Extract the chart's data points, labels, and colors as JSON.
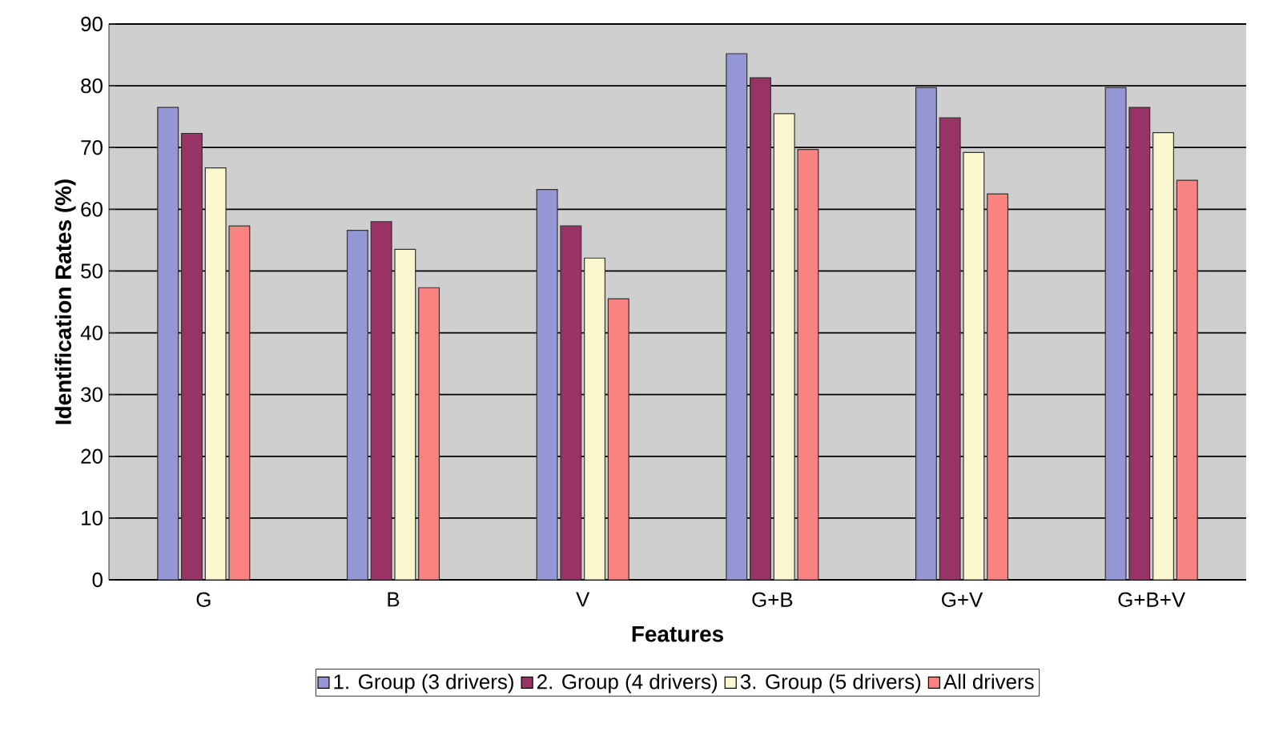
{
  "chart_data": {
    "type": "bar",
    "xlabel": "Features",
    "ylabel": "Identification Rates (%)",
    "categories": [
      "G",
      "B",
      "V",
      "G+B",
      "G+V",
      "G+B+V"
    ],
    "series": [
      {
        "name": "1. Group (3 drivers)",
        "color": "#9597d4",
        "values": [
          76.5,
          56.6,
          63.2,
          85.2,
          79.7,
          79.7
        ]
      },
      {
        "name": "2. Group (4 drivers)",
        "color": "#993366",
        "values": [
          72.3,
          58.0,
          57.3,
          81.3,
          74.8,
          76.5
        ]
      },
      {
        "name": "3. Group (5 drivers)",
        "color": "#fbf8cf",
        "values": [
          66.7,
          53.5,
          52.1,
          75.5,
          69.2,
          72.4
        ]
      },
      {
        "name": "All drivers",
        "color": "#f88380",
        "values": [
          57.3,
          47.3,
          45.5,
          69.7,
          62.5,
          64.7
        ]
      }
    ],
    "ylim": [
      0,
      90
    ],
    "yticks": [
      0,
      10,
      20,
      30,
      40,
      50,
      60,
      70,
      80,
      90
    ],
    "grid": "y",
    "legend": "bottom"
  }
}
